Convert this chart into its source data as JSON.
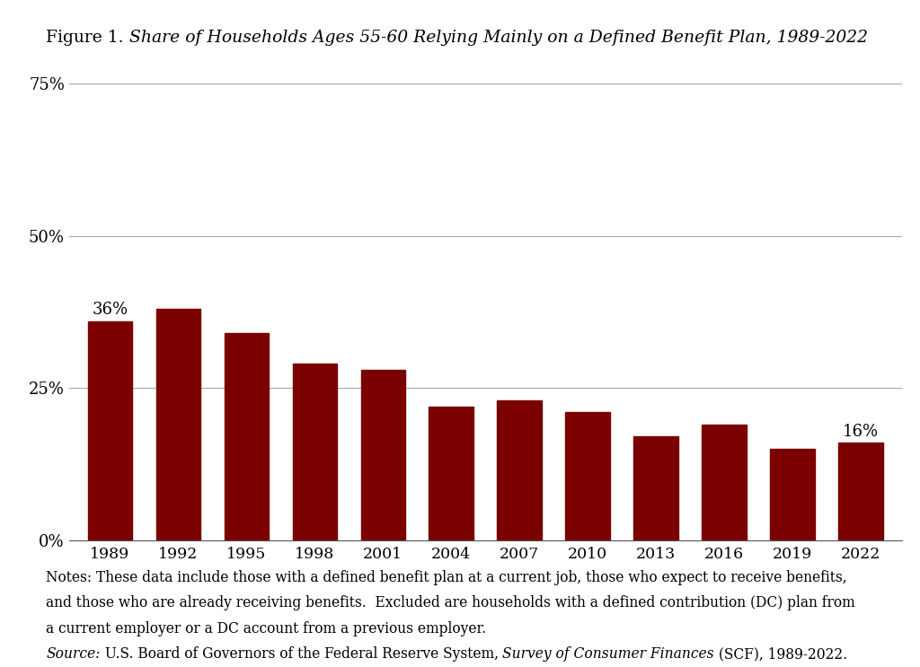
{
  "title_prefix": "Figure 1. ",
  "title_italic": "Share of Households Ages 55-60 Relying Mainly on a Defined Benefit Plan, 1989-2022",
  "categories": [
    1989,
    1992,
    1995,
    1998,
    2001,
    2004,
    2007,
    2010,
    2013,
    2016,
    2019,
    2022
  ],
  "values": [
    0.36,
    0.38,
    0.34,
    0.29,
    0.28,
    0.22,
    0.23,
    0.21,
    0.17,
    0.19,
    0.15,
    0.16
  ],
  "bar_color": "#7B0000",
  "label_1989": "36%",
  "label_2022": "16%",
  "ylim": [
    0,
    0.75
  ],
  "yticks": [
    0.0,
    0.25,
    0.5,
    0.75
  ],
  "ytick_labels": [
    "0%",
    "25%",
    "50%",
    "75%"
  ],
  "background_color": "#FFFFFF",
  "notes_line1": "Notes: These data include those with a defined benefit plan at a current job, those who expect to receive benefits,",
  "notes_line2": "and those who are already receiving benefits.  Excluded are households with a defined contribution (DC) plan from",
  "notes_line3": "a current employer or a DC account from a previous employer.",
  "source_italic1": "Source:",
  "source_normal1": " U.S. Board of Governors of the Federal Reserve System, ",
  "source_italic2": "Survey of Consumer Finances",
  "source_normal2": " (SCF), 1989-2022."
}
